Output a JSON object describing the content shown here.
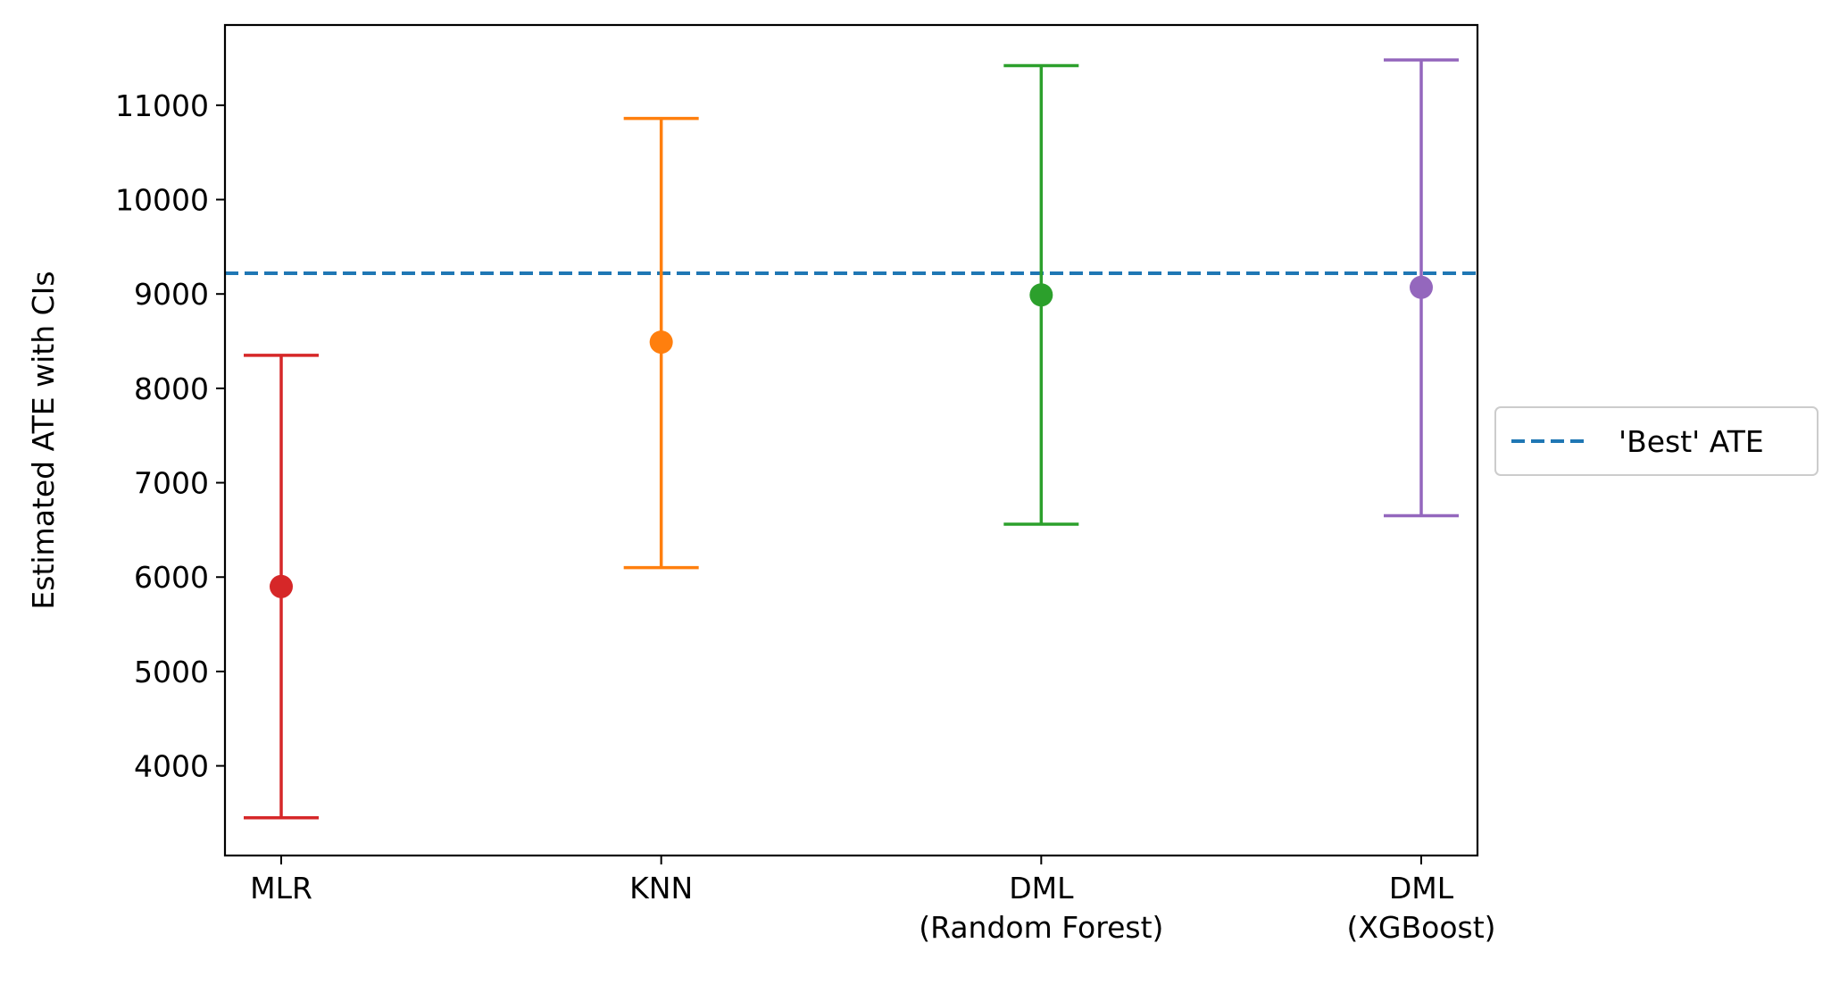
{
  "chart_data": {
    "type": "errorbar",
    "title": "",
    "xlabel": "",
    "ylabel": "Estimated ATE with CIs",
    "categories": [
      [
        "MLR"
      ],
      [
        "KNN"
      ],
      [
        "DML",
        "(Random Forest)"
      ],
      [
        "DML",
        "(XGBoost)"
      ]
    ],
    "points": [
      {
        "estimate": 5900,
        "lower": 3450,
        "upper": 8350,
        "color": "#d62728"
      },
      {
        "estimate": 8490,
        "lower": 6100,
        "upper": 10860,
        "color": "#ff7f0e"
      },
      {
        "estimate": 8990,
        "lower": 6560,
        "upper": 11420,
        "color": "#2ca02c"
      },
      {
        "estimate": 9070,
        "lower": 6650,
        "upper": 11480,
        "color": "#9467bd"
      }
    ],
    "reference_line": {
      "value": 9220,
      "label": "'Best' ATE",
      "color": "#1f77b4",
      "style": "dashed"
    },
    "yticks": [
      4000,
      5000,
      6000,
      7000,
      8000,
      9000,
      10000,
      11000
    ],
    "ylim": [
      3050,
      11850
    ],
    "legend": "center-right-outside",
    "grid": false
  }
}
